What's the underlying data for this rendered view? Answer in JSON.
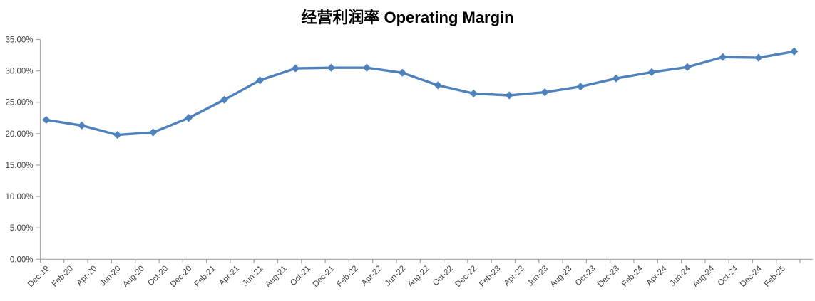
{
  "title": "经营利润率 Operating Margin",
  "colors": {
    "series_line": "#4F81BD",
    "marker_fill": "#4F81BD",
    "axis_line": "#A6A6A6",
    "tick_label": "#404040",
    "title_text": "#000000",
    "background": "#FFFFFF"
  },
  "chart_data": {
    "type": "line",
    "title": "经营利润率 Operating Margin",
    "legend": "none",
    "grid": false,
    "marker_shape": "diamond",
    "y_axis": {
      "ylim": [
        0,
        35
      ],
      "format": "percent",
      "ticks": [
        {
          "label": "35.00%",
          "value": 35
        },
        {
          "label": "30.00%",
          "value": 30
        },
        {
          "label": "25.00%",
          "value": 25
        },
        {
          "label": "20.00%",
          "value": 20
        },
        {
          "label": "15.00%",
          "value": 15
        },
        {
          "label": "10.00%",
          "value": 10
        },
        {
          "label": "5.00%",
          "value": 5
        },
        {
          "label": "0.00%",
          "value": 0
        }
      ]
    },
    "x_axis": {
      "label_rotation_deg": 45,
      "label_interval_months": 2,
      "tick_labels": [
        "Dec-19",
        "Feb-20",
        "Apr-20",
        "Jun-20",
        "Aug-20",
        "Oct-20",
        "Dec-20",
        "Feb-21",
        "Apr-21",
        "Jun-21",
        "Aug-21",
        "Oct-21",
        "Dec-21",
        "Feb-22",
        "Apr-22",
        "Jun-22",
        "Aug-22",
        "Oct-22",
        "Dec-22",
        "Feb-23",
        "Apr-23",
        "Jun-23",
        "Aug-23",
        "Oct-23",
        "Dec-23",
        "Feb-24",
        "Apr-24",
        "Jun-24",
        "Aug-24",
        "Oct-24",
        "Dec-24",
        "Feb-25"
      ]
    },
    "series": [
      {
        "name": "经营利润率 Operating Margin",
        "color": "#4F81BD",
        "points": [
          {
            "x": "Dec-19",
            "y": 22.2
          },
          {
            "x": "Mar-20",
            "y": 21.3
          },
          {
            "x": "Jun-20",
            "y": 19.8
          },
          {
            "x": "Sep-20",
            "y": 20.2
          },
          {
            "x": "Dec-20",
            "y": 22.5
          },
          {
            "x": "Mar-21",
            "y": 25.4
          },
          {
            "x": "Jun-21",
            "y": 28.5
          },
          {
            "x": "Sep-21",
            "y": 30.4
          },
          {
            "x": "Dec-21",
            "y": 30.5
          },
          {
            "x": "Mar-22",
            "y": 30.5
          },
          {
            "x": "Jun-22",
            "y": 29.7
          },
          {
            "x": "Sep-22",
            "y": 27.7
          },
          {
            "x": "Dec-22",
            "y": 26.4
          },
          {
            "x": "Mar-23",
            "y": 26.1
          },
          {
            "x": "Jun-23",
            "y": 26.6
          },
          {
            "x": "Sep-23",
            "y": 27.5
          },
          {
            "x": "Dec-23",
            "y": 28.8
          },
          {
            "x": "Mar-24",
            "y": 29.8
          },
          {
            "x": "Jun-24",
            "y": 30.6
          },
          {
            "x": "Sep-24",
            "y": 32.2
          },
          {
            "x": "Dec-24",
            "y": 32.1
          },
          {
            "x": "Mar-25",
            "y": 33.1
          }
        ]
      }
    ]
  }
}
